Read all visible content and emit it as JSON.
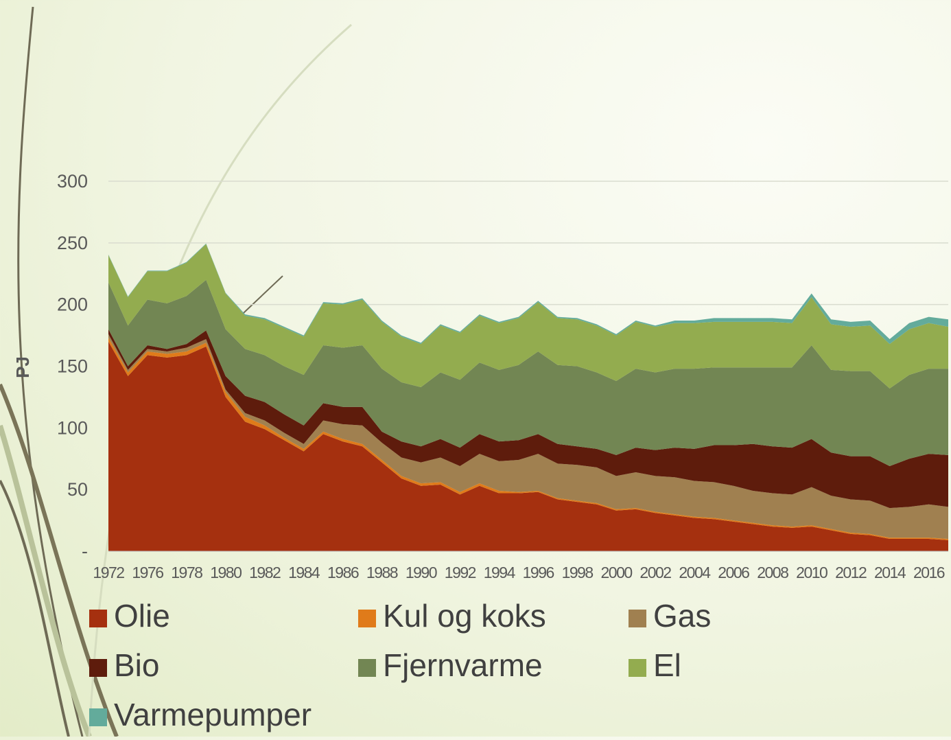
{
  "chart_data": {
    "type": "stacked_area",
    "y_label": "PJ",
    "categories": [
      "1972",
      null,
      "1976",
      null,
      "1978",
      null,
      "1980",
      null,
      "1982",
      null,
      "1984",
      null,
      "1986",
      null,
      "1988",
      null,
      "1990",
      null,
      "1992",
      null,
      "1994",
      null,
      "1996",
      null,
      "1998",
      null,
      "2000",
      null,
      "2002",
      null,
      "2004",
      null,
      "2006",
      null,
      "2008",
      null,
      "2010",
      null,
      "2012",
      null,
      "2014",
      null,
      "2016",
      null
    ],
    "ylim": [
      0,
      300
    ],
    "yticks": [
      {
        "value": 0,
        "label": "-"
      },
      50,
      100,
      150,
      200,
      250,
      300
    ],
    "grid": true,
    "series": [
      {
        "name": "Olie",
        "color": "#a5300f",
        "values": [
          170,
          142,
          159,
          157,
          159,
          166,
          125,
          105,
          99,
          90,
          81,
          95,
          89,
          85,
          72,
          59,
          53,
          54,
          46,
          53,
          47,
          47,
          48,
          42,
          40,
          38,
          33,
          34,
          31,
          29,
          27,
          26,
          24,
          22,
          20,
          19,
          20,
          17,
          14,
          13,
          10,
          10,
          10,
          9
        ]
      },
      {
        "name": "Kul og koks",
        "color": "#e07b1a",
        "values": [
          3,
          3,
          3,
          3,
          3,
          3,
          4,
          4,
          3,
          2,
          2,
          2,
          2,
          2,
          2,
          2,
          2,
          2,
          2,
          2,
          2,
          1,
          1,
          1,
          1,
          1,
          1,
          1,
          1,
          1,
          1,
          1,
          1,
          1,
          1,
          1,
          1,
          1,
          1,
          1,
          1,
          1,
          1,
          1
        ]
      },
      {
        "name": "Gas",
        "color": "#a08050",
        "values": [
          3,
          2,
          2,
          2,
          3,
          3,
          2,
          3,
          4,
          4,
          4,
          9,
          12,
          15,
          14,
          15,
          17,
          20,
          21,
          24,
          24,
          26,
          30,
          28,
          29,
          29,
          27,
          29,
          29,
          30,
          29,
          29,
          28,
          26,
          26,
          26,
          31,
          27,
          27,
          27,
          24,
          25,
          27,
          26
        ]
      },
      {
        "name": "Bio",
        "color": "#5e1c0c",
        "values": [
          4,
          3,
          3,
          2,
          3,
          7,
          11,
          14,
          15,
          15,
          15,
          14,
          14,
          15,
          9,
          13,
          13,
          15,
          15,
          16,
          16,
          16,
          16,
          16,
          15,
          15,
          17,
          20,
          21,
          24,
          26,
          30,
          33,
          38,
          38,
          38,
          39,
          35,
          35,
          36,
          34,
          39,
          41,
          42
        ]
      },
      {
        "name": "Fjernvarme",
        "color": "#728653",
        "values": [
          38,
          33,
          37,
          37,
          39,
          41,
          38,
          38,
          38,
          39,
          41,
          47,
          48,
          50,
          51,
          48,
          48,
          54,
          55,
          58,
          58,
          61,
          67,
          64,
          65,
          62,
          60,
          64,
          63,
          64,
          65,
          63,
          63,
          62,
          64,
          65,
          76,
          67,
          69,
          69,
          63,
          68,
          69,
          70
        ]
      },
      {
        "name": "El",
        "color": "#93ac4f",
        "values": [
          22,
          23,
          23,
          26,
          27,
          29,
          29,
          27,
          29,
          31,
          31,
          34,
          35,
          37,
          38,
          37,
          35,
          38,
          38,
          38,
          38,
          38,
          40,
          38,
          38,
          38,
          37,
          38,
          37,
          37,
          37,
          37,
          37,
          37,
          37,
          36,
          39,
          37,
          36,
          37,
          36,
          37,
          37,
          34
        ]
      },
      {
        "name": "Varmepumper",
        "color": "#63ab9b",
        "values": [
          0.5,
          0.5,
          0.5,
          0.5,
          0.5,
          0.5,
          0.5,
          1,
          1,
          1,
          1,
          1,
          1,
          1,
          1,
          1,
          1,
          1,
          1,
          1,
          1,
          1,
          1,
          1,
          1,
          1,
          1,
          1,
          1,
          2,
          2,
          3,
          3,
          3,
          3,
          3,
          3,
          4,
          4,
          4,
          4,
          5,
          5,
          6
        ]
      }
    ]
  }
}
